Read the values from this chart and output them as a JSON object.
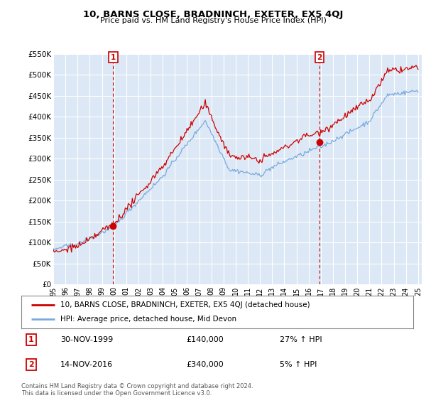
{
  "title": "10, BARNS CLOSE, BRADNINCH, EXETER, EX5 4QJ",
  "subtitle": "Price paid vs. HM Land Registry's House Price Index (HPI)",
  "bg_color": "#ffffff",
  "plot_bg_color": "#dce8f5",
  "grid_color": "#ffffff",
  "red_line_color": "#cc0000",
  "blue_line_color": "#7aaadd",
  "ylim": [
    0,
    550000
  ],
  "yticks": [
    0,
    50000,
    100000,
    150000,
    200000,
    250000,
    300000,
    350000,
    400000,
    450000,
    500000,
    550000
  ],
  "ytick_labels": [
    "£0",
    "£50K",
    "£100K",
    "£150K",
    "£200K",
    "£250K",
    "£300K",
    "£350K",
    "£400K",
    "£450K",
    "£500K",
    "£550K"
  ],
  "xtick_years": [
    1995,
    1996,
    1997,
    1998,
    1999,
    2000,
    2001,
    2002,
    2003,
    2004,
    2005,
    2006,
    2007,
    2008,
    2009,
    2010,
    2011,
    2012,
    2013,
    2014,
    2015,
    2016,
    2017,
    2018,
    2019,
    2020,
    2021,
    2022,
    2023,
    2024,
    2025
  ],
  "xtick_labels": [
    "95",
    "96",
    "97",
    "98",
    "99",
    "00",
    "01",
    "02",
    "03",
    "04",
    "05",
    "06",
    "07",
    "08",
    "09",
    "10",
    "11",
    "12",
    "13",
    "14",
    "15",
    "16",
    "17",
    "18",
    "19",
    "20",
    "21",
    "22",
    "23",
    "24",
    "25"
  ],
  "sale1_x": 1999.92,
  "sale1_y": 140000,
  "sale1_label": "1",
  "sale1_date": "30-NOV-1999",
  "sale1_price": "£140,000",
  "sale1_hpi": "27% ↑ HPI",
  "sale2_x": 2016.88,
  "sale2_y": 340000,
  "sale2_label": "2",
  "sale2_date": "14-NOV-2016",
  "sale2_price": "£340,000",
  "sale2_hpi": "5% ↑ HPI",
  "legend_label_red": "10, BARNS CLOSE, BRADNINCH, EXETER, EX5 4QJ (detached house)",
  "legend_label_blue": "HPI: Average price, detached house, Mid Devon",
  "footer": "Contains HM Land Registry data © Crown copyright and database right 2024.\nThis data is licensed under the Open Government Licence v3.0."
}
